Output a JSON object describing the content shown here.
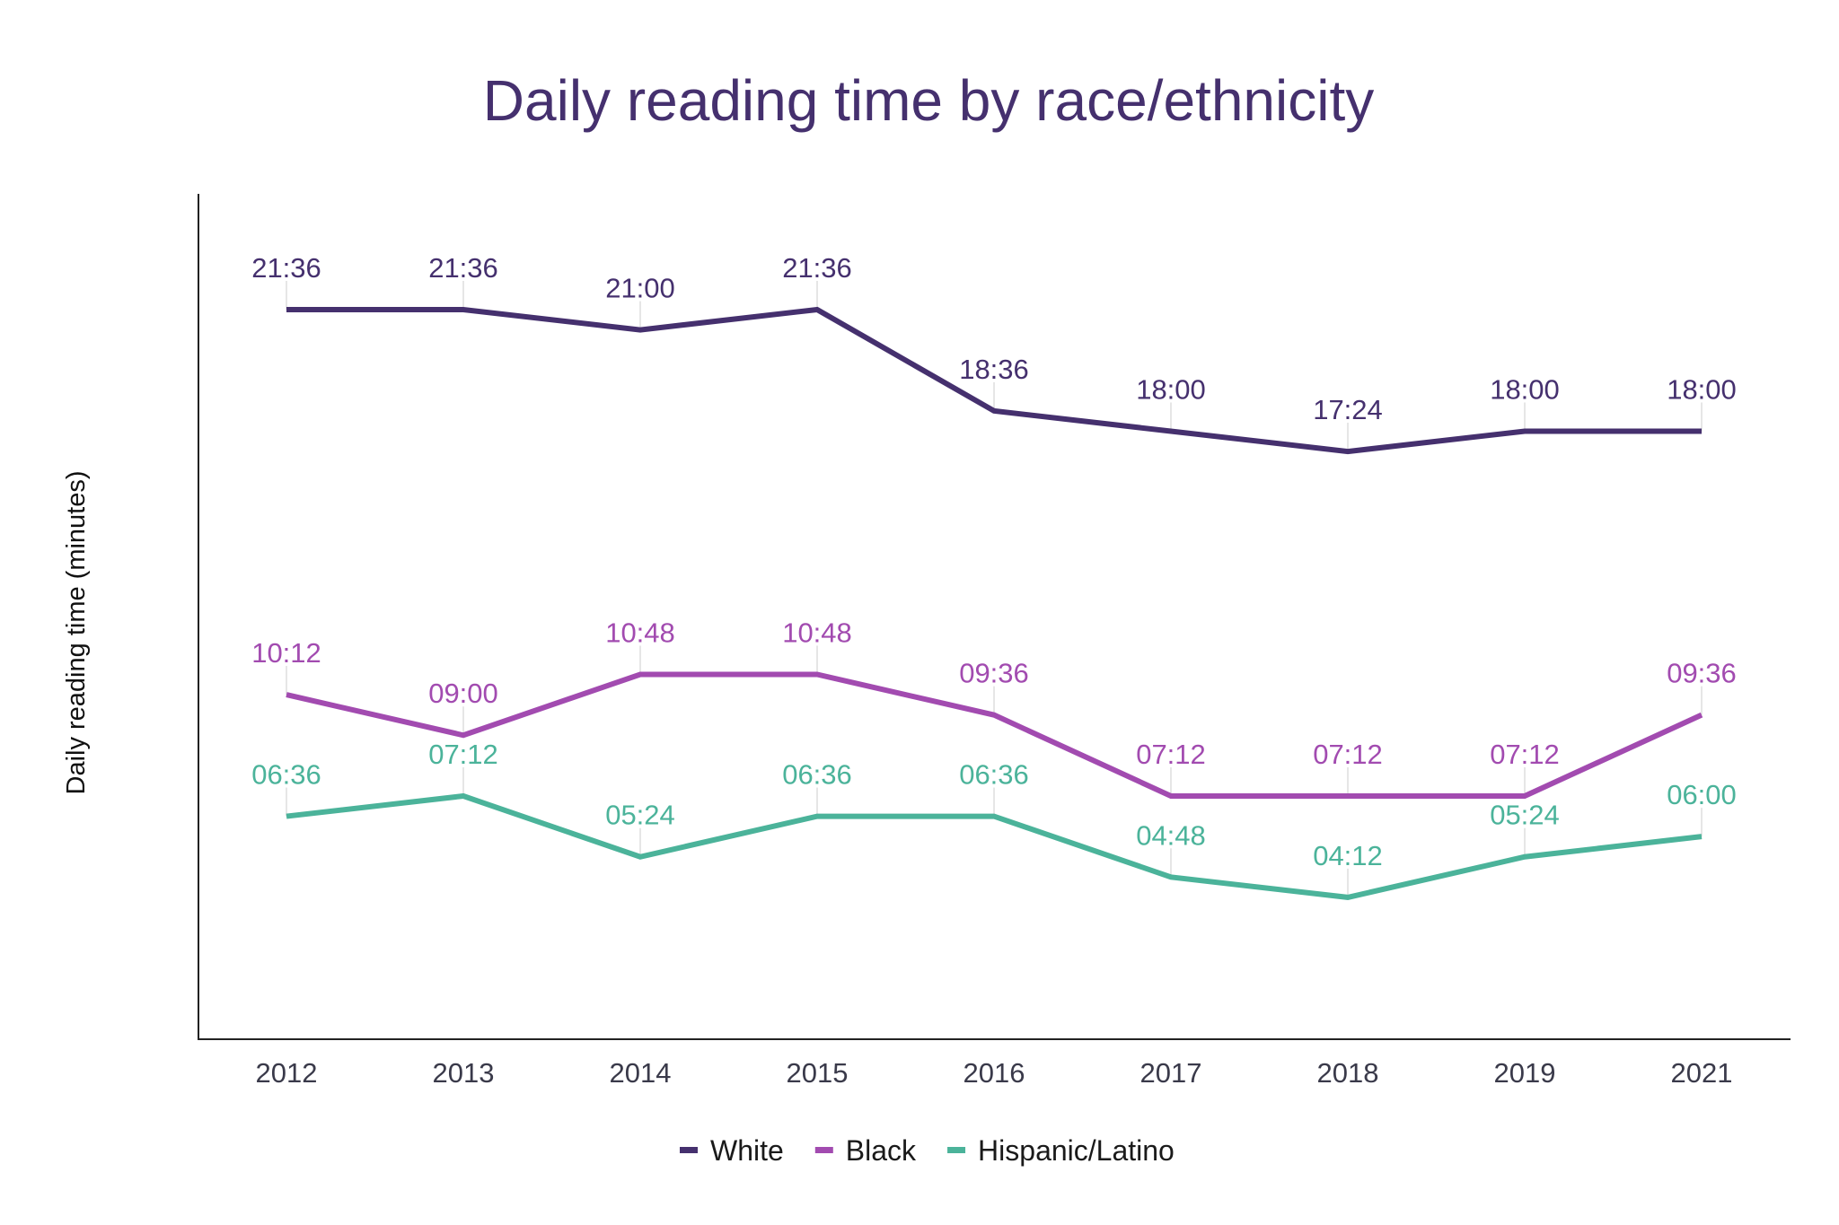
{
  "chart_data": {
    "type": "line",
    "title": "Daily reading time by race/ethnicity",
    "xlabel": "",
    "ylabel": "Daily reading time (minutes)",
    "categories": [
      "2012",
      "2013",
      "2014",
      "2015",
      "2016",
      "2017",
      "2018",
      "2019",
      "2021"
    ],
    "ylim": [
      0,
      25
    ],
    "grid": false,
    "legend": "bottom",
    "series": [
      {
        "name": "White",
        "color": "#45306e",
        "values": [
          "21:36",
          "21:36",
          "21:00",
          "21:36",
          "18:36",
          "18:00",
          "17:24",
          "18:00",
          "18:00"
        ]
      },
      {
        "name": "Black",
        "color": "#a24bb0",
        "values": [
          "10:12",
          "09:00",
          "10:48",
          "10:48",
          "09:36",
          "07:12",
          "07:12",
          "07:12",
          "09:36"
        ]
      },
      {
        "name": "Hispanic/Latino",
        "color": "#4bb39a",
        "values": [
          "06:36",
          "07:12",
          "05:24",
          "06:36",
          "06:36",
          "04:48",
          "04:12",
          "05:24",
          "06:00"
        ]
      }
    ]
  }
}
